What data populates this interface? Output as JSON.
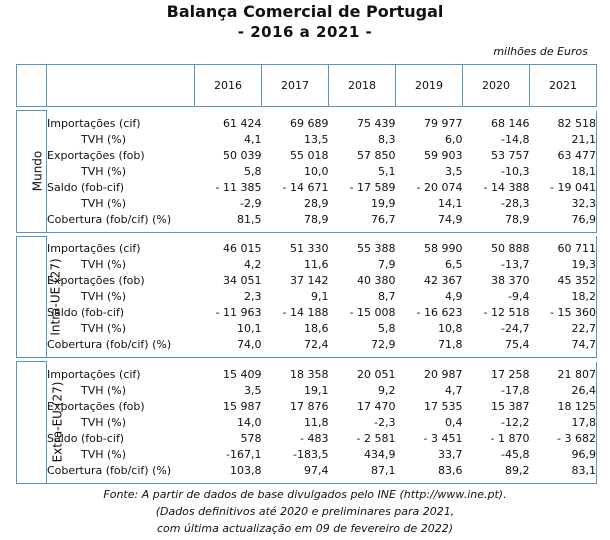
{
  "title": "Balança Comercial de Portugal",
  "subtitle": "- 2016 a 2021 -",
  "units": "milhões de Euros",
  "years": [
    "2016",
    "2017",
    "2018",
    "2019",
    "2020",
    "2021"
  ],
  "sections": [
    {
      "name": "Mundo",
      "rows": [
        {
          "label": "Importações (cif)",
          "indent": false,
          "values": [
            "61 424",
            "69 689",
            "75 439",
            "79 977",
            "68 146",
            "82 518"
          ]
        },
        {
          "label": "TVH (%)",
          "indent": true,
          "values": [
            "4,1",
            "13,5",
            "8,3",
            "6,0",
            "-14,8",
            "21,1"
          ]
        },
        {
          "label": "Exportações (fob)",
          "indent": false,
          "values": [
            "50 039",
            "55 018",
            "57 850",
            "59 903",
            "53 757",
            "63 477"
          ]
        },
        {
          "label": "TVH (%)",
          "indent": true,
          "values": [
            "5,8",
            "10,0",
            "5,1",
            "3,5",
            "-10,3",
            "18,1"
          ]
        },
        {
          "label": "Saldo (fob-cif)",
          "indent": false,
          "values": [
            "- 11 385",
            "- 14 671",
            "- 17 589",
            "- 20 074",
            "- 14 388",
            "- 19 041"
          ]
        },
        {
          "label": "TVH (%)",
          "indent": true,
          "values": [
            "-2,9",
            "28,9",
            "19,9",
            "14,1",
            "-28,3",
            "32,3"
          ]
        },
        {
          "label": "Cobertura (fob/cif) (%)",
          "indent": false,
          "values": [
            "81,5",
            "78,9",
            "76,7",
            "74,9",
            "78,9",
            "76,9"
          ]
        }
      ]
    },
    {
      "name": "Intra-UE (27)",
      "rows": [
        {
          "label": "Importações (cif)",
          "indent": false,
          "values": [
            "46 015",
            "51 330",
            "55 388",
            "58 990",
            "50 888",
            "60 711"
          ]
        },
        {
          "label": "TVH (%)",
          "indent": true,
          "values": [
            "4,2",
            "11,6",
            "7,9",
            "6,5",
            "-13,7",
            "19,3"
          ]
        },
        {
          "label": "Exportações (fob)",
          "indent": false,
          "values": [
            "34 051",
            "37 142",
            "40 380",
            "42 367",
            "38 370",
            "45 352"
          ]
        },
        {
          "label": "TVH (%)",
          "indent": true,
          "values": [
            "2,3",
            "9,1",
            "8,7",
            "4,9",
            "-9,4",
            "18,2"
          ]
        },
        {
          "label": "Saldo (fob-cif)",
          "indent": false,
          "values": [
            "- 11 963",
            "- 14 188",
            "- 15 008",
            "- 16 623",
            "- 12 518",
            "- 15 360"
          ]
        },
        {
          "label": "TVH (%)",
          "indent": true,
          "values": [
            "10,1",
            "18,6",
            "5,8",
            "10,8",
            "-24,7",
            "22,7"
          ]
        },
        {
          "label": "Cobertura (fob/cif) (%)",
          "indent": false,
          "values": [
            "74,0",
            "72,4",
            "72,9",
            "71,8",
            "75,4",
            "74,7"
          ]
        }
      ]
    },
    {
      "name": "Extra-EU (27)",
      "rows": [
        {
          "label": "Importações (cif)",
          "indent": false,
          "values": [
            "15 409",
            "18 358",
            "20 051",
            "20 987",
            "17 258",
            "21 807"
          ]
        },
        {
          "label": "TVH (%)",
          "indent": true,
          "values": [
            "3,5",
            "19,1",
            "9,2",
            "4,7",
            "-17,8",
            "26,4"
          ]
        },
        {
          "label": "Exportações (fob)",
          "indent": false,
          "values": [
            "15 987",
            "17 876",
            "17 470",
            "17 535",
            "15 387",
            "18 125"
          ]
        },
        {
          "label": "TVH (%)",
          "indent": true,
          "values": [
            "14,0",
            "11,8",
            "-2,3",
            "0,4",
            "-12,2",
            "17,8"
          ]
        },
        {
          "label": "Saldo (fob-cif)",
          "indent": false,
          "values": [
            "578",
            "- 483",
            "- 2 581",
            "- 3 451",
            "- 1 870",
            "- 3 682"
          ]
        },
        {
          "label": "TVH (%)",
          "indent": true,
          "values": [
            "-167,1",
            "-183,5",
            "434,9",
            "33,7",
            "-45,8",
            "96,9"
          ]
        },
        {
          "label": "Cobertura (fob/cif) (%)",
          "indent": false,
          "values": [
            "103,8",
            "97,4",
            "87,1",
            "83,6",
            "89,2",
            "83,1"
          ]
        }
      ]
    }
  ],
  "footer": [
    "Fonte: A partir de dados de base divulgados pelo INE (http://www.ine.pt).",
    "(Dados definitivos até 2020 e preliminares para 2021,",
    "com última actualização em 09 de fevereiro de 2022)"
  ]
}
